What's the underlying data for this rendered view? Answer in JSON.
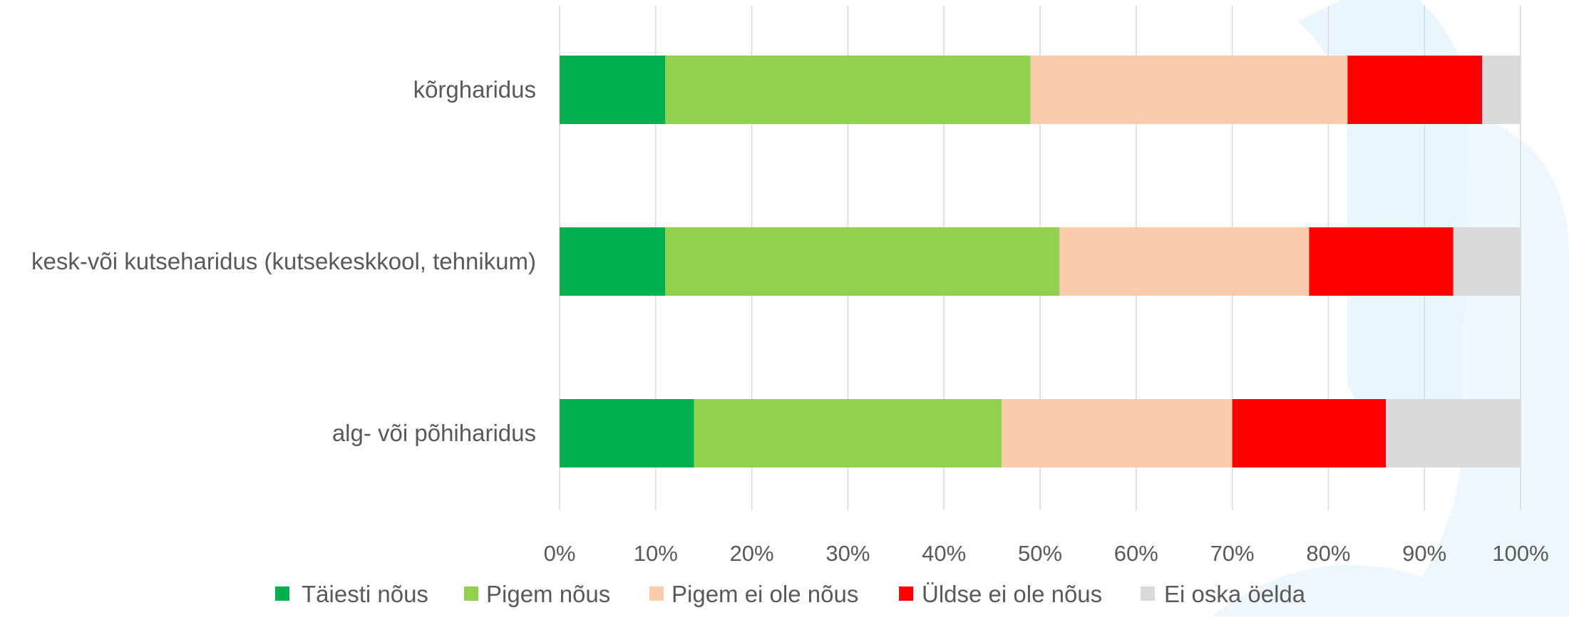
{
  "chart_data": {
    "type": "bar",
    "orientation": "horizontal",
    "stacked": "percent",
    "title": "",
    "xlabel": "",
    "ylabel": "",
    "categories": [
      "kõrgharidus",
      "kesk-või kutseharidus (kutsekeskkool, tehnikum)",
      "alg- või põhiharidus"
    ],
    "series": [
      {
        "name": "Täiesti nõus",
        "color": "#00B050",
        "values": [
          11,
          11,
          14
        ]
      },
      {
        "name": "Pigem nõus",
        "color": "#92D050",
        "values": [
          38,
          41,
          32
        ]
      },
      {
        "name": "Pigem ei ole nõus",
        "color": "#F8CBAD",
        "values": [
          33,
          26,
          24
        ]
      },
      {
        "name": "Üldse ei ole nõus",
        "color": "#FF0000",
        "values": [
          14,
          15,
          16
        ]
      },
      {
        "name": "Ei oska öelda",
        "color": "#D9D9D9",
        "values": [
          4,
          7,
          14
        ]
      }
    ],
    "xlim": [
      0,
      100
    ],
    "x_ticks": [
      "0%",
      "10%",
      "20%",
      "30%",
      "40%",
      "50%",
      "60%",
      "70%",
      "80%",
      "90%",
      "100%"
    ],
    "grid": true,
    "legend": "bottom"
  }
}
